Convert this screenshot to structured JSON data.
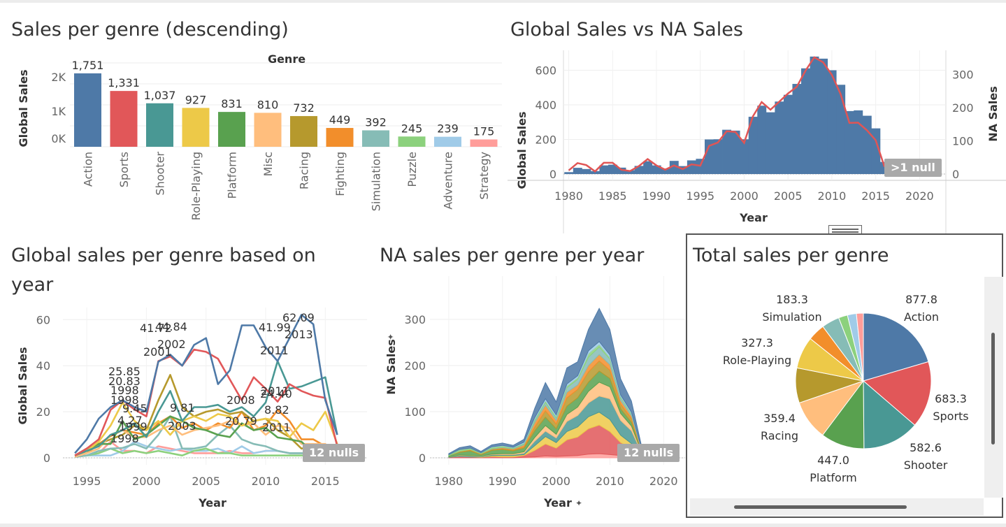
{
  "panels": {
    "bar": {
      "title": "Sales per genre (descending)",
      "header": "Genre",
      "ylabel": "Global Sales",
      "yticks": [
        "2K",
        "1K",
        "0K"
      ]
    },
    "global_na": {
      "title": "Global Sales vs NA Sales",
      "ylabel_left": "Global Sales",
      "ylabel_right": "NA Sales",
      "xlabel": "Year",
      "badge": ">1 null"
    },
    "lines": {
      "title_line1": "Global sales per genre based on",
      "title_line2": "year",
      "ylabel": "Global Sales",
      "xlabel": "Year",
      "badge": "12 nulls"
    },
    "area": {
      "title": "NA sales per genre per year",
      "ylabel": "NA Sales",
      "xlabel": "Year",
      "badge": "12 nulls"
    },
    "pie": {
      "title": "Total sales per genre"
    }
  },
  "colors": {
    "Action": "#4e79a7",
    "Sports": "#e15759",
    "Shooter": "#499894",
    "Role-Playing": "#edc948",
    "Platform": "#59a14f",
    "Misc": "#ffbe7d",
    "Racing": "#b6992d",
    "Fighting": "#f28e2b",
    "Simulation": "#86bcb6",
    "Puzzle": "#8cd17d",
    "Adventure": "#a0cbe8",
    "Strategy": "#ff9d9a",
    "na_line": "#e05555"
  },
  "chart_data": [
    {
      "type": "bar",
      "title": "Sales per genre (descending)",
      "xlabel": "Genre",
      "ylabel": "Global Sales",
      "categories": [
        "Action",
        "Sports",
        "Shooter",
        "Role-Playing",
        "Platform",
        "Misc",
        "Racing",
        "Fighting",
        "Simulation",
        "Puzzle",
        "Adventure",
        "Strategy"
      ],
      "values": [
        1751,
        1331,
        1037,
        927,
        831,
        810,
        732,
        449,
        392,
        245,
        239,
        175
      ],
      "labels": [
        "1,751",
        "1,331",
        "1,037",
        "927",
        "831",
        "810",
        "732",
        "449",
        "392",
        "245",
        "239",
        "175"
      ],
      "ylim": [
        0,
        2000
      ],
      "y_ticks": [
        "2K",
        "1K",
        "0K"
      ],
      "grid": true
    },
    {
      "type": "bar",
      "title": "Global Sales vs NA Sales",
      "xlabel": "Year",
      "ylabel": "Global Sales",
      "y2label": "NA Sales",
      "x": [
        1980,
        1981,
        1982,
        1983,
        1984,
        1985,
        1986,
        1987,
        1988,
        1989,
        1990,
        1991,
        1992,
        1993,
        1994,
        1995,
        1996,
        1997,
        1998,
        1999,
        2000,
        2001,
        2002,
        2003,
        2004,
        2005,
        2006,
        2007,
        2008,
        2009,
        2010,
        2011,
        2012,
        2013,
        2014,
        2015,
        2016
      ],
      "series": [
        {
          "name": "Global Sales",
          "values": [
            11,
            36,
            29,
            17,
            50,
            54,
            37,
            22,
            47,
            74,
            50,
            32,
            76,
            46,
            79,
            88,
            200,
            201,
            256,
            251,
            201,
            331,
            395,
            357,
            419,
            458,
            521,
            611,
            679,
            667,
            600,
            516,
            364,
            368,
            337,
            264,
            70
          ]
        },
        {
          "name": "NA Sales",
          "values": [
            11,
            33,
            27,
            8,
            34,
            34,
            13,
            9,
            24,
            45,
            26,
            13,
            26,
            15,
            29,
            25,
            85,
            95,
            129,
            127,
            94,
            174,
            217,
            194,
            218,
            243,
            263,
            312,
            352,
            337,
            299,
            241,
            154,
            155,
            132,
            102,
            22
          ]
        }
      ],
      "x_ticks": [
        1980,
        1985,
        1990,
        1995,
        2000,
        2005,
        2010,
        2015,
        2020
      ],
      "ylim": [
        0,
        700
      ],
      "y2lim": [
        0,
        370
      ],
      "y_ticks": [
        0,
        200,
        400,
        600
      ],
      "y2_ticks": [
        0,
        100,
        200,
        300
      ]
    },
    {
      "type": "line",
      "title": "Global sales per genre based on year",
      "xlabel": "Year",
      "ylabel": "Global Sales",
      "x": [
        1994,
        1995,
        1996,
        1997,
        1998,
        1999,
        2000,
        2001,
        2002,
        2003,
        2004,
        2005,
        2006,
        2007,
        2008,
        2009,
        2010,
        2011,
        2012,
        2013,
        2014,
        2015,
        2016
      ],
      "series": [
        {
          "name": "Action",
          "values": [
            2,
            8,
            17,
            22,
            25,
            22,
            20,
            41.72,
            44.84,
            40,
            49,
            52,
            32,
            38,
            57.5,
            57.5,
            48,
            41.99,
            52,
            62.09,
            58,
            25,
            10
          ]
        },
        {
          "name": "Sports",
          "values": [
            1,
            4,
            8,
            20.83,
            25,
            21,
            18,
            42,
            44,
            40,
            47,
            46,
            43,
            34,
            25,
            35,
            30,
            24.4,
            32,
            29,
            27,
            26,
            5
          ]
        },
        {
          "name": "Shooter",
          "values": [
            1,
            3,
            5,
            10,
            12,
            15,
            9,
            20,
            29,
            16,
            22,
            22,
            23,
            20,
            22,
            18,
            24,
            42,
            30,
            31,
            33,
            35,
            10
          ]
        },
        {
          "name": "Role-Playing",
          "values": [
            1,
            3,
            7,
            14,
            24,
            16,
            12,
            16,
            10,
            16,
            18,
            16,
            19,
            18,
            14,
            16,
            17,
            16,
            9,
            15,
            12,
            20,
            6
          ]
        },
        {
          "name": "Platform",
          "values": [
            1,
            4,
            6,
            6,
            16,
            8,
            10,
            14,
            18,
            16,
            13,
            12,
            10,
            9,
            15,
            12,
            13,
            8.82,
            8,
            7,
            2,
            2,
            1
          ]
        },
        {
          "name": "Misc",
          "values": [
            0.5,
            2,
            4,
            10,
            12,
            9,
            9,
            12,
            14,
            10,
            12,
            13,
            14,
            16,
            14,
            15,
            10,
            14,
            13,
            6,
            6,
            6,
            1
          ]
        },
        {
          "name": "Racing",
          "values": [
            1,
            2,
            6,
            8,
            10,
            14,
            12,
            25,
            36,
            22,
            18,
            20,
            21,
            19,
            20,
            16,
            17,
            12,
            9,
            4,
            5,
            4,
            1
          ]
        },
        {
          "name": "Fighting",
          "values": [
            1,
            3,
            6,
            9.45,
            12,
            11,
            10,
            15,
            18,
            13,
            15,
            12,
            15,
            13,
            20,
            12,
            14,
            20.79,
            16,
            8,
            8,
            5,
            1
          ]
        },
        {
          "name": "Simulation",
          "values": [
            0.5,
            1,
            3,
            4,
            4.27,
            6,
            4,
            10,
            18,
            4,
            4,
            5,
            10,
            14,
            8,
            6,
            5,
            3,
            2,
            2,
            2,
            2,
            0.5
          ]
        },
        {
          "name": "Puzzle",
          "values": [
            0.5,
            1,
            2,
            4,
            2,
            3,
            2,
            3,
            2,
            1,
            3,
            4,
            2,
            2,
            1,
            1,
            1,
            1,
            1,
            1,
            1,
            0.5,
            0.2
          ]
        },
        {
          "name": "Adventure",
          "values": [
            0.5,
            1,
            1,
            1,
            3,
            7,
            5,
            4,
            3,
            4,
            3,
            3,
            4,
            2,
            5,
            2,
            3,
            3,
            2,
            2,
            2,
            1,
            0.5
          ]
        },
        {
          "name": "Strategy",
          "values": [
            0.5,
            1,
            2,
            7,
            3,
            3,
            2,
            5,
            4,
            3,
            2,
            2,
            2,
            3,
            2,
            2,
            3,
            3,
            2,
            2,
            1,
            1,
            0.3
          ]
        }
      ],
      "annotations": [
        "62.09",
        "2013",
        "44.84",
        "41.72",
        "2002",
        "2001",
        "41.99",
        "2011",
        "25.85",
        "20.83",
        "1998",
        "1998",
        "9.45",
        "4.27",
        "1999",
        "1998",
        "9.81",
        "2003",
        "20.79",
        "2008",
        "24.40",
        "2011",
        "8.82",
        "2011"
      ],
      "x_ticks": [
        1995,
        2000,
        2005,
        2010,
        2015
      ],
      "ylim": [
        0,
        65
      ],
      "y_ticks": [
        0,
        20,
        40,
        60
      ]
    },
    {
      "type": "area",
      "title": "NA sales per genre per year",
      "xlabel": "Year",
      "ylabel": "NA Sales",
      "x": [
        1980,
        1982,
        1984,
        1986,
        1988,
        1990,
        1992,
        1994,
        1996,
        1998,
        2000,
        2002,
        2004,
        2006,
        2008,
        2010,
        2012,
        2014,
        2016
      ],
      "series": [
        {
          "name": "Strategy",
          "values": [
            0,
            0,
            0,
            0,
            0,
            0,
            0,
            1,
            2,
            4,
            3,
            4,
            5,
            8,
            9,
            7,
            5,
            3,
            0
          ]
        },
        {
          "name": "Sports",
          "values": [
            1,
            3,
            2,
            1,
            3,
            2,
            2,
            4,
            14,
            26,
            18,
            35,
            40,
            55,
            62,
            50,
            28,
            18,
            3
          ]
        },
        {
          "name": "Role-Playing",
          "values": [
            0,
            0,
            0,
            1,
            2,
            3,
            3,
            2,
            10,
            16,
            12,
            18,
            22,
            26,
            28,
            26,
            16,
            10,
            2
          ]
        },
        {
          "name": "Shooter",
          "values": [
            1,
            2,
            2,
            1,
            2,
            2,
            2,
            3,
            10,
            12,
            10,
            22,
            25,
            30,
            35,
            45,
            32,
            28,
            4
          ]
        },
        {
          "name": "Misc",
          "values": [
            0,
            1,
            1,
            1,
            1,
            2,
            2,
            3,
            8,
            12,
            8,
            15,
            18,
            25,
            30,
            26,
            15,
            10,
            1
          ]
        },
        {
          "name": "Platform",
          "values": [
            3,
            6,
            10,
            3,
            8,
            9,
            6,
            8,
            14,
            18,
            12,
            18,
            20,
            20,
            24,
            18,
            10,
            8,
            1
          ]
        },
        {
          "name": "Racing",
          "values": [
            0,
            1,
            2,
            1,
            2,
            2,
            2,
            3,
            8,
            14,
            10,
            18,
            18,
            22,
            22,
            18,
            10,
            8,
            1
          ]
        },
        {
          "name": "Fighting",
          "values": [
            0,
            1,
            1,
            1,
            1,
            2,
            2,
            4,
            10,
            12,
            8,
            12,
            10,
            14,
            14,
            12,
            8,
            6,
            1
          ]
        },
        {
          "name": "Simulation",
          "values": [
            0,
            0,
            0,
            0,
            1,
            1,
            1,
            2,
            4,
            6,
            5,
            10,
            12,
            18,
            16,
            12,
            6,
            4,
            1
          ]
        },
        {
          "name": "Puzzle",
          "values": [
            2,
            4,
            3,
            2,
            3,
            3,
            2,
            2,
            4,
            4,
            4,
            4,
            4,
            8,
            6,
            4,
            3,
            2,
            0
          ]
        },
        {
          "name": "Adventure",
          "values": [
            0,
            0,
            0,
            0,
            1,
            1,
            1,
            2,
            3,
            4,
            3,
            4,
            4,
            6,
            6,
            5,
            3,
            2,
            1
          ]
        },
        {
          "name": "Action",
          "values": [
            2,
            4,
            5,
            3,
            4,
            5,
            4,
            6,
            20,
            35,
            28,
            35,
            30,
            46,
            72,
            55,
            35,
            24,
            5
          ]
        }
      ],
      "x_ticks": [
        1980,
        1990,
        2000,
        2010,
        2020
      ],
      "ylim": [
        0,
        350
      ],
      "y_ticks": [
        0,
        100,
        200,
        300
      ]
    },
    {
      "type": "pie",
      "title": "Total sales per genre",
      "categories": [
        "Action",
        "Sports",
        "Shooter",
        "Platform",
        "Misc",
        "Racing",
        "Role-Playing",
        "Fighting",
        "Simulation",
        "Puzzle",
        "Adventure",
        "Strategy"
      ],
      "values": [
        877.8,
        683.3,
        582.6,
        447.0,
        407.0,
        359.4,
        327.3,
        176.0,
        183.3,
        92.0,
        92.0,
        71.0
      ],
      "labels": {
        "Action": "877.8",
        "Sports": "683.3",
        "Shooter": "582.6",
        "Platform": "447.0",
        "Racing": "359.4",
        "Role-Playing": "327.3",
        "Simulation": "183.3"
      }
    }
  ]
}
